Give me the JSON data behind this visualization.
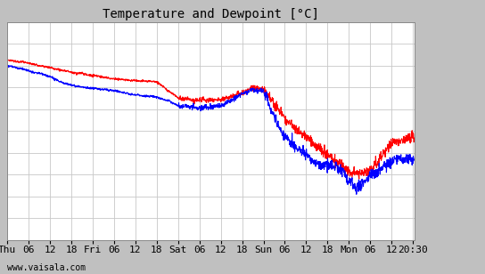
{
  "title": "Temperature and Dewpoint [°C]",
  "xlabel_bottom": "www.vaisala.com",
  "ylim": [
    -12,
    8
  ],
  "yticks": [
    -12,
    -10,
    -8,
    -6,
    -4,
    -2,
    0,
    2,
    4,
    6,
    8
  ],
  "x_tick_labels": [
    "Thu",
    "06",
    "12",
    "18",
    "Fri",
    "06",
    "12",
    "18",
    "Sat",
    "06",
    "12",
    "18",
    "Sun",
    "06",
    "12",
    "18",
    "Mon",
    "06",
    "12",
    "20:30"
  ],
  "x_tick_positions": [
    0,
    6,
    12,
    18,
    24,
    30,
    36,
    42,
    48,
    54,
    60,
    66,
    72,
    78,
    84,
    90,
    96,
    102,
    108,
    114
  ],
  "x_total_hours": 114.5,
  "background_color": "#ffffff",
  "grid_color": "#c8c8c8",
  "temp_color": "#ff0000",
  "dewpoint_color": "#0000ff",
  "line_width": 0.8,
  "title_fontsize": 10,
  "tick_fontsize": 8,
  "watermark_fontsize": 7,
  "fig_bg": "#c0c0c0"
}
